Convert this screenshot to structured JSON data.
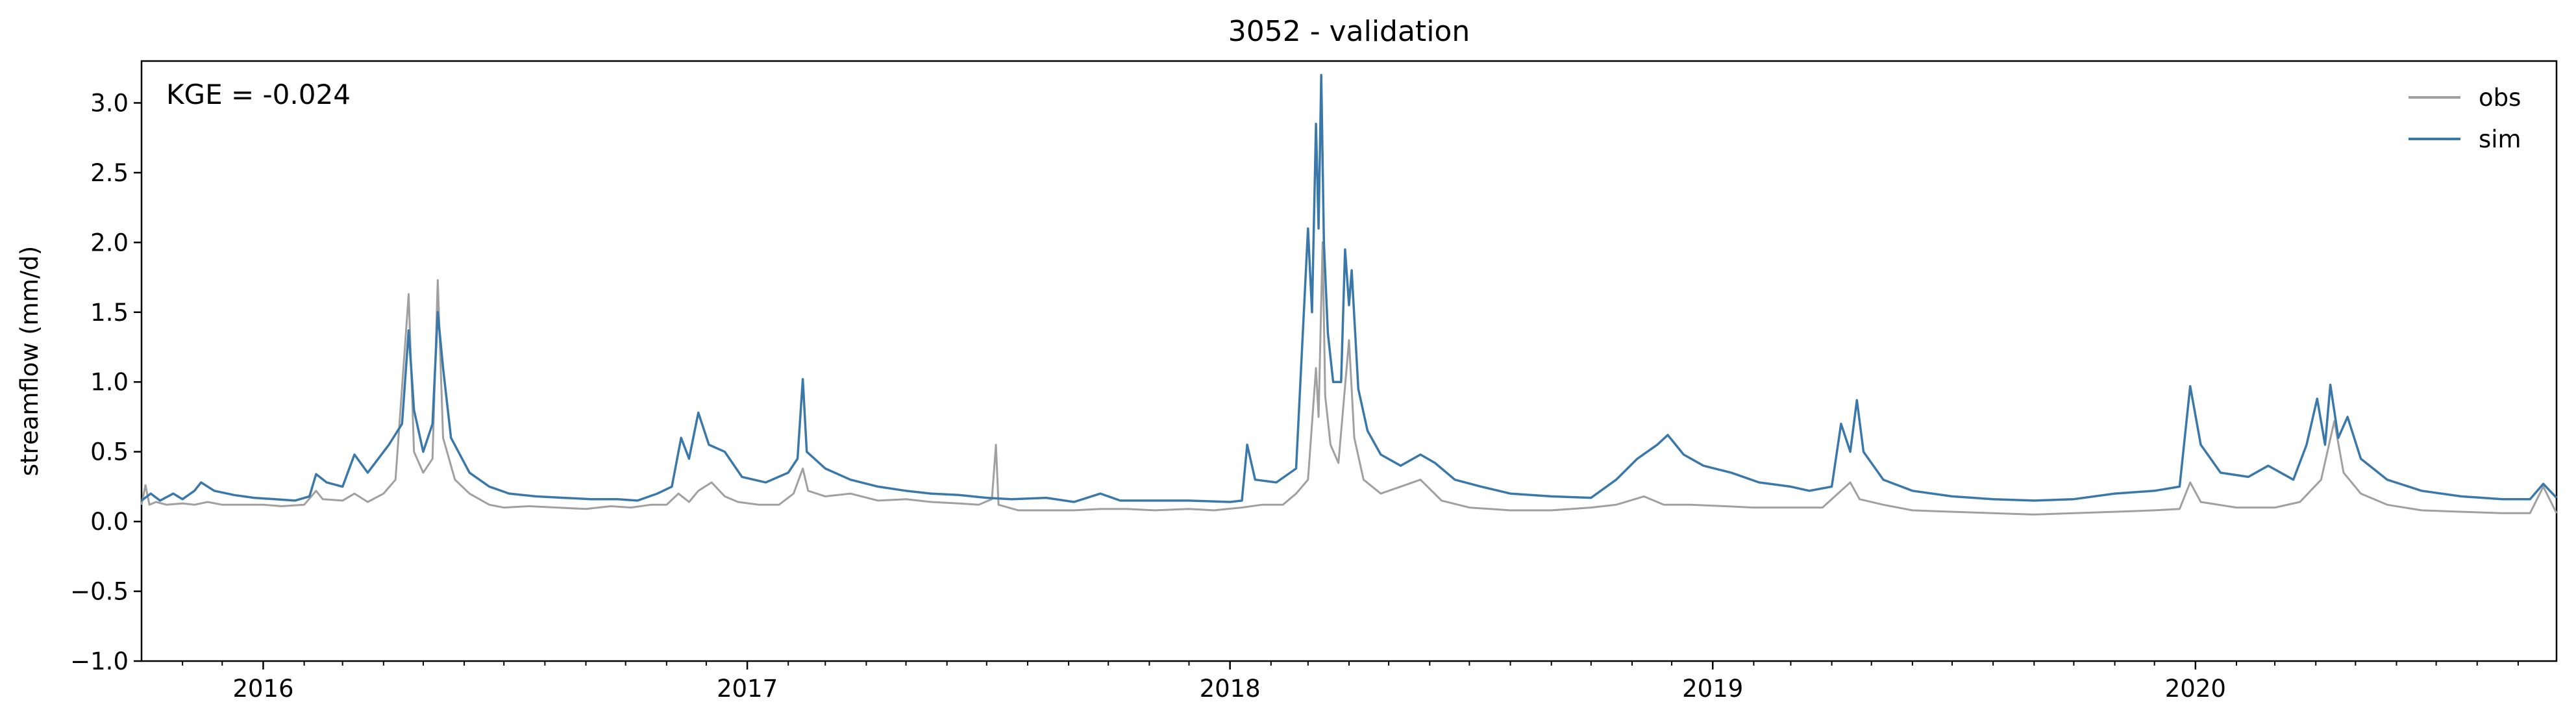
{
  "chart_data": {
    "type": "line",
    "title": "3052 - validation",
    "xlabel": "",
    "ylabel": "streamflow (mm/d)",
    "annotation": "KGE = -0.024",
    "xlim": [
      "2015-10-01",
      "2020-09-30"
    ],
    "ylim": [
      -1.0,
      3.3
    ],
    "yticks": [
      "−1.0",
      "−0.5",
      "0.0",
      "0.5",
      "1.0",
      "1.5",
      "2.0",
      "2.5",
      "3.0"
    ],
    "ytick_values": [
      -1.0,
      -0.5,
      0.0,
      0.5,
      1.0,
      1.5,
      2.0,
      2.5,
      3.0
    ],
    "xticks": [
      {
        "label": "2016",
        "date": "2016-01-01"
      },
      {
        "label": "2017",
        "date": "2017-01-01"
      },
      {
        "label": "2018",
        "date": "2018-01-01"
      },
      {
        "label": "2019",
        "date": "2019-01-01"
      },
      {
        "label": "2020",
        "date": "2020-01-01"
      }
    ],
    "grid": false,
    "legend_position": "top-right",
    "series": [
      {
        "name": "obs",
        "color": "#a0a0a0",
        "points": [
          [
            "2015-10-01",
            0.12
          ],
          [
            "2015-10-04",
            0.26
          ],
          [
            "2015-10-07",
            0.12
          ],
          [
            "2015-10-12",
            0.14
          ],
          [
            "2015-10-20",
            0.12
          ],
          [
            "2015-11-01",
            0.13
          ],
          [
            "2015-11-10",
            0.12
          ],
          [
            "2015-11-20",
            0.14
          ],
          [
            "2015-12-01",
            0.12
          ],
          [
            "2015-12-15",
            0.12
          ],
          [
            "2016-01-01",
            0.12
          ],
          [
            "2016-01-15",
            0.11
          ],
          [
            "2016-02-01",
            0.12
          ],
          [
            "2016-02-10",
            0.22
          ],
          [
            "2016-02-15",
            0.16
          ],
          [
            "2016-03-01",
            0.15
          ],
          [
            "2016-03-10",
            0.2
          ],
          [
            "2016-03-20",
            0.14
          ],
          [
            "2016-04-01",
            0.2
          ],
          [
            "2016-04-10",
            0.3
          ],
          [
            "2016-04-20",
            1.63
          ],
          [
            "2016-04-24",
            0.5
          ],
          [
            "2016-05-01",
            0.35
          ],
          [
            "2016-05-08",
            0.45
          ],
          [
            "2016-05-12",
            1.73
          ],
          [
            "2016-05-16",
            0.6
          ],
          [
            "2016-05-25",
            0.3
          ],
          [
            "2016-06-05",
            0.2
          ],
          [
            "2016-06-20",
            0.12
          ],
          [
            "2016-07-01",
            0.1
          ],
          [
            "2016-07-20",
            0.11
          ],
          [
            "2016-08-10",
            0.1
          ],
          [
            "2016-09-01",
            0.09
          ],
          [
            "2016-09-20",
            0.11
          ],
          [
            "2016-10-05",
            0.1
          ],
          [
            "2016-10-20",
            0.12
          ],
          [
            "2016-11-01",
            0.12
          ],
          [
            "2016-11-10",
            0.2
          ],
          [
            "2016-11-18",
            0.14
          ],
          [
            "2016-11-25",
            0.22
          ],
          [
            "2016-12-05",
            0.28
          ],
          [
            "2016-12-15",
            0.18
          ],
          [
            "2016-12-25",
            0.14
          ],
          [
            "2017-01-10",
            0.12
          ],
          [
            "2017-01-25",
            0.12
          ],
          [
            "2017-02-05",
            0.2
          ],
          [
            "2017-02-12",
            0.38
          ],
          [
            "2017-02-16",
            0.22
          ],
          [
            "2017-03-01",
            0.18
          ],
          [
            "2017-03-20",
            0.2
          ],
          [
            "2017-04-10",
            0.15
          ],
          [
            "2017-05-01",
            0.16
          ],
          [
            "2017-05-20",
            0.14
          ],
          [
            "2017-06-10",
            0.13
          ],
          [
            "2017-06-25",
            0.12
          ],
          [
            "2017-07-05",
            0.16
          ],
          [
            "2017-07-08",
            0.55
          ],
          [
            "2017-07-10",
            0.12
          ],
          [
            "2017-07-25",
            0.08
          ],
          [
            "2017-08-15",
            0.08
          ],
          [
            "2017-09-05",
            0.08
          ],
          [
            "2017-09-25",
            0.09
          ],
          [
            "2017-10-15",
            0.09
          ],
          [
            "2017-11-05",
            0.08
          ],
          [
            "2017-12-01",
            0.09
          ],
          [
            "2017-12-20",
            0.08
          ],
          [
            "2018-01-10",
            0.1
          ],
          [
            "2018-01-25",
            0.12
          ],
          [
            "2018-02-10",
            0.12
          ],
          [
            "2018-02-20",
            0.2
          ],
          [
            "2018-03-01",
            0.3
          ],
          [
            "2018-03-07",
            1.1
          ],
          [
            "2018-03-09",
            0.75
          ],
          [
            "2018-03-12",
            2.0
          ],
          [
            "2018-03-14",
            0.9
          ],
          [
            "2018-03-18",
            0.55
          ],
          [
            "2018-03-24",
            0.42
          ],
          [
            "2018-04-01",
            1.3
          ],
          [
            "2018-04-05",
            0.6
          ],
          [
            "2018-04-12",
            0.3
          ],
          [
            "2018-04-25",
            0.2
          ],
          [
            "2018-05-10",
            0.25
          ],
          [
            "2018-05-25",
            0.3
          ],
          [
            "2018-06-10",
            0.15
          ],
          [
            "2018-07-01",
            0.1
          ],
          [
            "2018-08-01",
            0.08
          ],
          [
            "2018-09-01",
            0.08
          ],
          [
            "2018-10-01",
            0.1
          ],
          [
            "2018-10-20",
            0.12
          ],
          [
            "2018-11-10",
            0.18
          ],
          [
            "2018-11-25",
            0.12
          ],
          [
            "2018-12-15",
            0.12
          ],
          [
            "2019-01-10",
            0.11
          ],
          [
            "2019-02-01",
            0.1
          ],
          [
            "2019-03-01",
            0.1
          ],
          [
            "2019-03-25",
            0.1
          ],
          [
            "2019-04-15",
            0.28
          ],
          [
            "2019-04-22",
            0.16
          ],
          [
            "2019-05-10",
            0.12
          ],
          [
            "2019-06-01",
            0.08
          ],
          [
            "2019-07-01",
            0.07
          ],
          [
            "2019-08-01",
            0.06
          ],
          [
            "2019-09-01",
            0.05
          ],
          [
            "2019-10-01",
            0.06
          ],
          [
            "2019-11-01",
            0.07
          ],
          [
            "2019-12-01",
            0.08
          ],
          [
            "2019-12-20",
            0.09
          ],
          [
            "2019-12-28",
            0.28
          ],
          [
            "2020-01-05",
            0.14
          ],
          [
            "2020-02-01",
            0.1
          ],
          [
            "2020-03-01",
            0.1
          ],
          [
            "2020-03-20",
            0.14
          ],
          [
            "2020-04-05",
            0.3
          ],
          [
            "2020-04-15",
            0.72
          ],
          [
            "2020-04-22",
            0.35
          ],
          [
            "2020-05-05",
            0.2
          ],
          [
            "2020-05-25",
            0.12
          ],
          [
            "2020-06-20",
            0.08
          ],
          [
            "2020-07-20",
            0.07
          ],
          [
            "2020-08-20",
            0.06
          ],
          [
            "2020-09-10",
            0.06
          ],
          [
            "2020-09-20",
            0.25
          ],
          [
            "2020-09-30",
            0.06
          ]
        ]
      },
      {
        "name": "sim",
        "color": "#3a78aa",
        "points": [
          [
            "2015-10-01",
            0.15
          ],
          [
            "2015-10-08",
            0.2
          ],
          [
            "2015-10-15",
            0.15
          ],
          [
            "2015-10-25",
            0.2
          ],
          [
            "2015-11-01",
            0.16
          ],
          [
            "2015-11-10",
            0.22
          ],
          [
            "2015-11-15",
            0.28
          ],
          [
            "2015-11-25",
            0.22
          ],
          [
            "2015-12-10",
            0.19
          ],
          [
            "2015-12-25",
            0.17
          ],
          [
            "2016-01-10",
            0.16
          ],
          [
            "2016-01-25",
            0.15
          ],
          [
            "2016-02-05",
            0.18
          ],
          [
            "2016-02-10",
            0.34
          ],
          [
            "2016-02-18",
            0.28
          ],
          [
            "2016-03-01",
            0.25
          ],
          [
            "2016-03-10",
            0.48
          ],
          [
            "2016-03-20",
            0.35
          ],
          [
            "2016-04-05",
            0.55
          ],
          [
            "2016-04-15",
            0.7
          ],
          [
            "2016-04-20",
            1.37
          ],
          [
            "2016-04-24",
            0.8
          ],
          [
            "2016-05-01",
            0.5
          ],
          [
            "2016-05-08",
            0.7
          ],
          [
            "2016-05-12",
            1.5
          ],
          [
            "2016-05-16",
            1.1
          ],
          [
            "2016-05-22",
            0.6
          ],
          [
            "2016-06-05",
            0.35
          ],
          [
            "2016-06-20",
            0.25
          ],
          [
            "2016-07-05",
            0.2
          ],
          [
            "2016-07-25",
            0.18
          ],
          [
            "2016-08-15",
            0.17
          ],
          [
            "2016-09-05",
            0.16
          ],
          [
            "2016-09-25",
            0.16
          ],
          [
            "2016-10-10",
            0.15
          ],
          [
            "2016-10-25",
            0.2
          ],
          [
            "2016-11-05",
            0.25
          ],
          [
            "2016-11-12",
            0.6
          ],
          [
            "2016-11-18",
            0.45
          ],
          [
            "2016-11-25",
            0.78
          ],
          [
            "2016-12-03",
            0.55
          ],
          [
            "2016-12-15",
            0.5
          ],
          [
            "2016-12-28",
            0.32
          ],
          [
            "2017-01-15",
            0.28
          ],
          [
            "2017-02-01",
            0.35
          ],
          [
            "2017-02-08",
            0.45
          ],
          [
            "2017-02-12",
            1.02
          ],
          [
            "2017-02-15",
            0.5
          ],
          [
            "2017-03-01",
            0.38
          ],
          [
            "2017-03-20",
            0.3
          ],
          [
            "2017-04-10",
            0.25
          ],
          [
            "2017-05-01",
            0.22
          ],
          [
            "2017-05-20",
            0.2
          ],
          [
            "2017-06-10",
            0.19
          ],
          [
            "2017-07-01",
            0.17
          ],
          [
            "2017-07-20",
            0.16
          ],
          [
            "2017-08-15",
            0.17
          ],
          [
            "2017-09-05",
            0.14
          ],
          [
            "2017-09-25",
            0.2
          ],
          [
            "2017-10-10",
            0.15
          ],
          [
            "2017-11-05",
            0.15
          ],
          [
            "2017-12-01",
            0.15
          ],
          [
            "2018-01-01",
            0.14
          ],
          [
            "2018-01-10",
            0.15
          ],
          [
            "2018-01-14",
            0.55
          ],
          [
            "2018-01-20",
            0.3
          ],
          [
            "2018-02-05",
            0.28
          ],
          [
            "2018-02-20",
            0.38
          ],
          [
            "2018-03-01",
            2.1
          ],
          [
            "2018-03-04",
            1.5
          ],
          [
            "2018-03-07",
            2.85
          ],
          [
            "2018-03-09",
            2.1
          ],
          [
            "2018-03-11",
            3.2
          ],
          [
            "2018-03-13",
            2.0
          ],
          [
            "2018-03-16",
            1.35
          ],
          [
            "2018-03-20",
            1.0
          ],
          [
            "2018-03-26",
            1.0
          ],
          [
            "2018-03-29",
            1.95
          ],
          [
            "2018-04-01",
            1.55
          ],
          [
            "2018-04-03",
            1.8
          ],
          [
            "2018-04-08",
            0.95
          ],
          [
            "2018-04-15",
            0.65
          ],
          [
            "2018-04-25",
            0.48
          ],
          [
            "2018-05-10",
            0.4
          ],
          [
            "2018-05-25",
            0.48
          ],
          [
            "2018-06-05",
            0.42
          ],
          [
            "2018-06-20",
            0.3
          ],
          [
            "2018-07-10",
            0.25
          ],
          [
            "2018-08-01",
            0.2
          ],
          [
            "2018-09-01",
            0.18
          ],
          [
            "2018-10-01",
            0.17
          ],
          [
            "2018-10-20",
            0.3
          ],
          [
            "2018-11-05",
            0.45
          ],
          [
            "2018-11-20",
            0.55
          ],
          [
            "2018-11-28",
            0.62
          ],
          [
            "2018-12-10",
            0.48
          ],
          [
            "2018-12-25",
            0.4
          ],
          [
            "2019-01-15",
            0.35
          ],
          [
            "2019-02-05",
            0.28
          ],
          [
            "2019-03-01",
            0.25
          ],
          [
            "2019-03-15",
            0.22
          ],
          [
            "2019-04-01",
            0.25
          ],
          [
            "2019-04-08",
            0.7
          ],
          [
            "2019-04-15",
            0.5
          ],
          [
            "2019-04-20",
            0.87
          ],
          [
            "2019-04-25",
            0.5
          ],
          [
            "2019-05-10",
            0.3
          ],
          [
            "2019-06-01",
            0.22
          ],
          [
            "2019-07-01",
            0.18
          ],
          [
            "2019-08-01",
            0.16
          ],
          [
            "2019-09-01",
            0.15
          ],
          [
            "2019-10-01",
            0.16
          ],
          [
            "2019-11-01",
            0.2
          ],
          [
            "2019-12-01",
            0.22
          ],
          [
            "2019-12-20",
            0.25
          ],
          [
            "2019-12-28",
            0.97
          ],
          [
            "2020-01-05",
            0.55
          ],
          [
            "2020-01-20",
            0.35
          ],
          [
            "2020-02-10",
            0.32
          ],
          [
            "2020-02-25",
            0.4
          ],
          [
            "2020-03-15",
            0.3
          ],
          [
            "2020-03-25",
            0.55
          ],
          [
            "2020-04-02",
            0.88
          ],
          [
            "2020-04-08",
            0.55
          ],
          [
            "2020-04-12",
            0.98
          ],
          [
            "2020-04-18",
            0.6
          ],
          [
            "2020-04-25",
            0.75
          ],
          [
            "2020-05-05",
            0.45
          ],
          [
            "2020-05-25",
            0.3
          ],
          [
            "2020-06-20",
            0.22
          ],
          [
            "2020-07-20",
            0.18
          ],
          [
            "2020-08-20",
            0.16
          ],
          [
            "2020-09-10",
            0.16
          ],
          [
            "2020-09-20",
            0.27
          ],
          [
            "2020-09-30",
            0.17
          ]
        ]
      }
    ]
  }
}
